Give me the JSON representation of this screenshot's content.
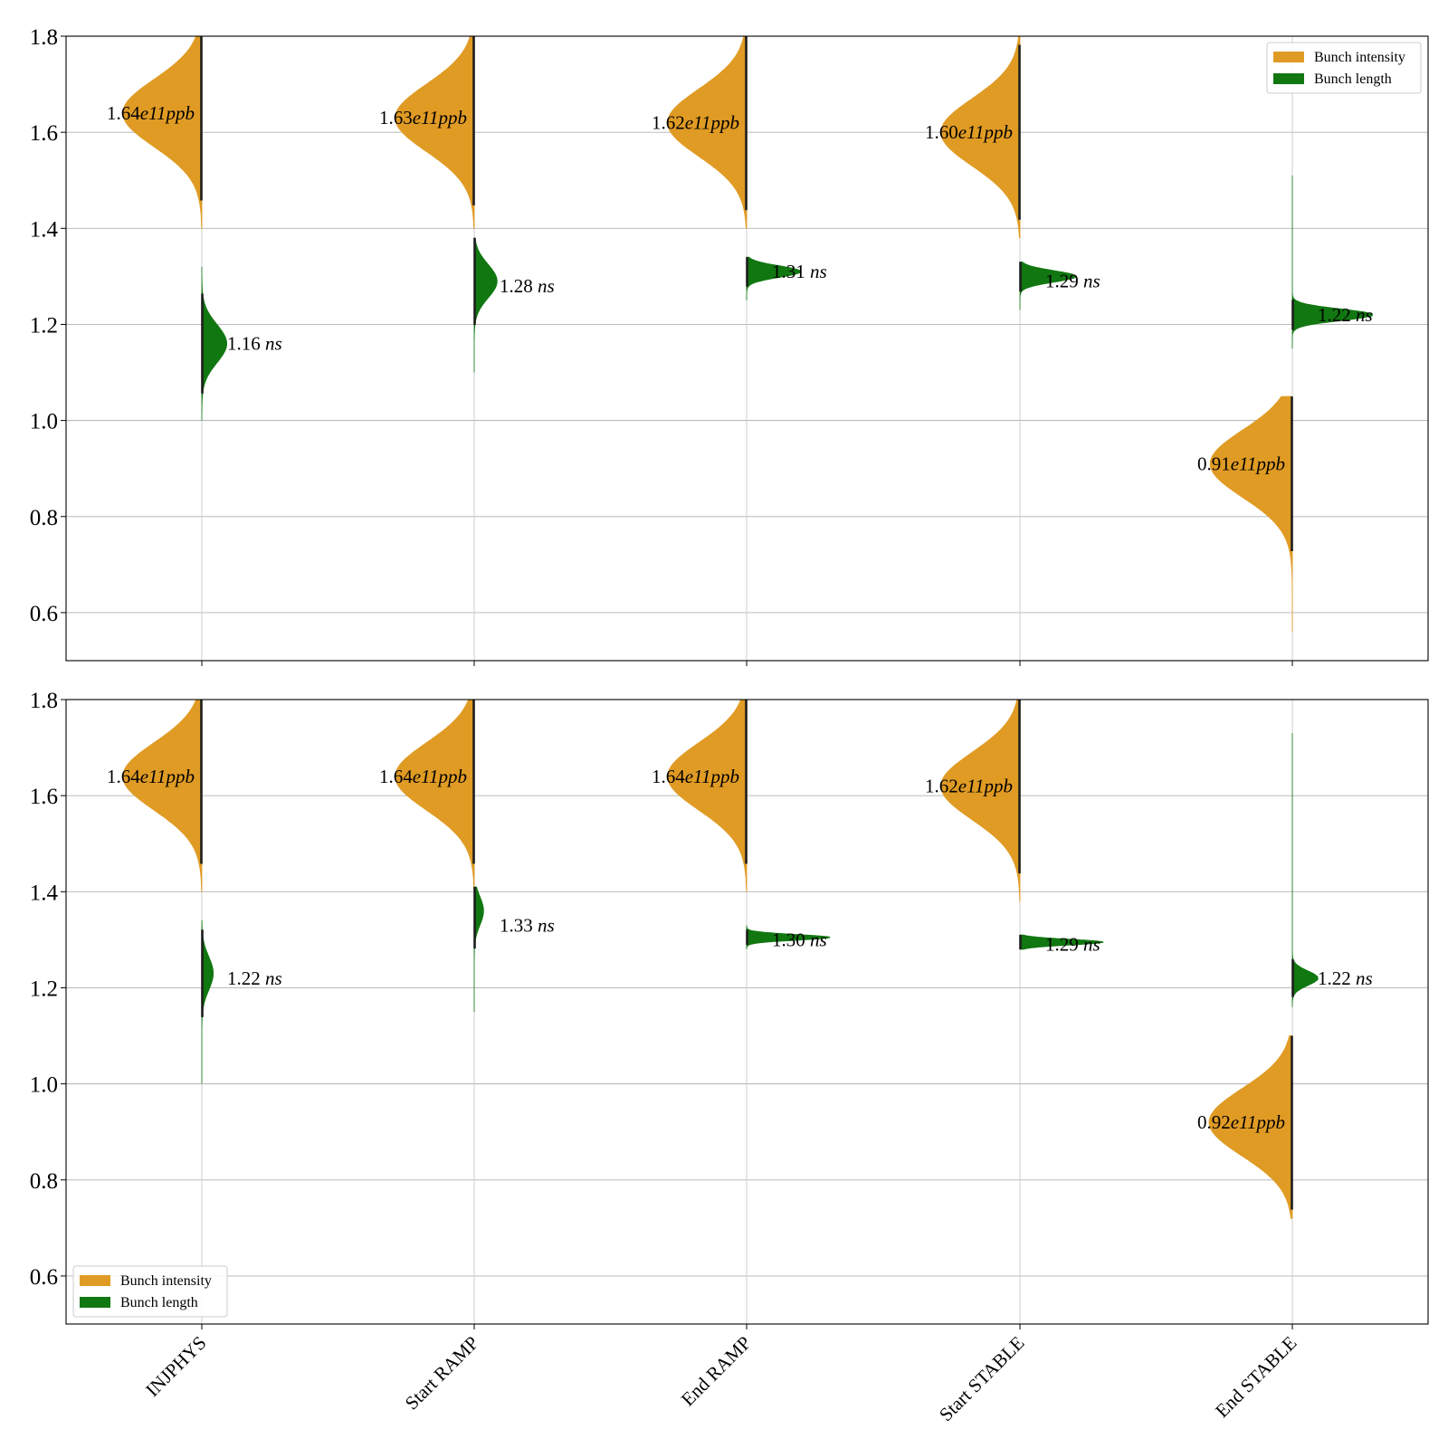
{
  "chart_data": [
    {
      "type": "violin",
      "panel": "top",
      "categories": [
        "INJPHYS",
        "Start RAMP",
        "End RAMP",
        "Start STABLE",
        "End STABLE"
      ],
      "show_category_labels": false,
      "ylim": [
        0.5,
        1.8
      ],
      "yticks": [
        "0.6",
        "0.8",
        "1.0",
        "1.2",
        "1.4",
        "1.6",
        "1.8"
      ],
      "grid": "horizontal",
      "legend": {
        "position": "top-right",
        "entries": [
          {
            "label": "Bunch intensity",
            "color": "#E09B24"
          },
          {
            "label": "Bunch length",
            "color": "#117711"
          }
        ]
      },
      "series": [
        {
          "name": "Bunch intensity",
          "color": "#E09B24",
          "side": "left",
          "distributions": [
            {
              "category": "INJPHYS",
              "mode": 1.64,
              "sd": 0.07,
              "min": 1.4,
              "max": 1.8,
              "peak_width": 0.76
            },
            {
              "category": "Start RAMP",
              "mode": 1.63,
              "sd": 0.07,
              "min": 1.4,
              "max": 1.8,
              "peak_width": 0.76
            },
            {
              "category": "End RAMP",
              "mode": 1.62,
              "sd": 0.07,
              "min": 1.4,
              "max": 1.8,
              "peak_width": 0.76
            },
            {
              "category": "Start STABLE",
              "mode": 1.6,
              "sd": 0.07,
              "min": 1.38,
              "max": 1.8,
              "peak_width": 0.76
            },
            {
              "category": "End STABLE",
              "mode": 0.91,
              "sd": 0.07,
              "min": 0.56,
              "max": 1.05,
              "peak_width": 0.79
            }
          ],
          "annotations": [
            {
              "category": "INJPHYS",
              "y": 1.64,
              "value": "1.64",
              "sci": "e11",
              "unit": "ppb"
            },
            {
              "category": "Start RAMP",
              "y": 1.63,
              "value": "1.63",
              "sci": "e11",
              "unit": "ppb"
            },
            {
              "category": "End RAMP",
              "y": 1.62,
              "value": "1.62",
              "sci": "e11",
              "unit": "ppb"
            },
            {
              "category": "Start STABLE",
              "y": 1.6,
              "value": "1.60",
              "sci": "e11",
              "unit": "ppb"
            },
            {
              "category": "End STABLE",
              "y": 0.91,
              "value": "0.91",
              "sci": "e11",
              "unit": "ppb"
            }
          ]
        },
        {
          "name": "Bunch length",
          "color": "#117711",
          "side": "right",
          "distributions": [
            {
              "category": "INJPHYS",
              "mode": 1.16,
              "sd": 0.04,
              "min": 1.0,
              "max": 1.32,
              "peak_width": 0.24
            },
            {
              "category": "Start RAMP",
              "mode": 1.29,
              "sd": 0.035,
              "min": 1.1,
              "max": 1.38,
              "peak_width": 0.22
            },
            {
              "category": "End RAMP",
              "mode": 1.31,
              "sd": 0.012,
              "min": 1.25,
              "max": 1.34,
              "peak_width": 0.52
            },
            {
              "category": "Start STABLE",
              "mode": 1.3,
              "sd": 0.012,
              "min": 1.23,
              "max": 1.33,
              "peak_width": 0.54
            },
            {
              "category": "End STABLE",
              "mode": 1.22,
              "sd": 0.012,
              "min": 1.15,
              "max": 1.51,
              "peak_width": 0.78
            }
          ],
          "annotations": [
            {
              "category": "INJPHYS",
              "y": 1.16,
              "value": "1.16",
              "unit": "ns"
            },
            {
              "category": "Start RAMP",
              "y": 1.28,
              "value": "1.28",
              "unit": "ns"
            },
            {
              "category": "End RAMP",
              "y": 1.31,
              "value": "1.31",
              "unit": "ns"
            },
            {
              "category": "Start STABLE",
              "y": 1.29,
              "value": "1.29",
              "unit": "ns"
            },
            {
              "category": "End STABLE",
              "y": 1.22,
              "value": "1.22",
              "unit": "ns"
            }
          ]
        }
      ]
    },
    {
      "type": "violin",
      "panel": "bottom",
      "categories": [
        "INJPHYS",
        "Start RAMP",
        "End RAMP",
        "Start STABLE",
        "End STABLE"
      ],
      "show_category_labels": true,
      "ylim": [
        0.5,
        1.8
      ],
      "yticks": [
        "0.6",
        "0.8",
        "1.0",
        "1.2",
        "1.4",
        "1.6",
        "1.8"
      ],
      "grid": "horizontal",
      "legend": {
        "position": "bottom-left",
        "entries": [
          {
            "label": "Bunch intensity",
            "color": "#E09B24"
          },
          {
            "label": "Bunch length",
            "color": "#117711"
          }
        ]
      },
      "series": [
        {
          "name": "Bunch intensity",
          "color": "#E09B24",
          "side": "left",
          "distributions": [
            {
              "category": "INJPHYS",
              "mode": 1.64,
              "sd": 0.07,
              "min": 1.4,
              "max": 1.8,
              "peak_width": 0.76
            },
            {
              "category": "Start RAMP",
              "mode": 1.64,
              "sd": 0.07,
              "min": 1.4,
              "max": 1.8,
              "peak_width": 0.76
            },
            {
              "category": "End RAMP",
              "mode": 1.64,
              "sd": 0.07,
              "min": 1.4,
              "max": 1.8,
              "peak_width": 0.76
            },
            {
              "category": "Start STABLE",
              "mode": 1.62,
              "sd": 0.07,
              "min": 1.38,
              "max": 1.8,
              "peak_width": 0.76
            },
            {
              "category": "End STABLE",
              "mode": 0.92,
              "sd": 0.07,
              "min": 0.72,
              "max": 1.1,
              "peak_width": 0.8
            }
          ],
          "annotations": [
            {
              "category": "INJPHYS",
              "y": 1.64,
              "value": "1.64",
              "sci": "e11",
              "unit": "ppb"
            },
            {
              "category": "Start RAMP",
              "y": 1.64,
              "value": "1.64",
              "sci": "e11",
              "unit": "ppb"
            },
            {
              "category": "End RAMP",
              "y": 1.64,
              "value": "1.64",
              "sci": "e11",
              "unit": "ppb"
            },
            {
              "category": "Start STABLE",
              "y": 1.62,
              "value": "1.62",
              "sci": "e11",
              "unit": "ppb"
            },
            {
              "category": "End STABLE",
              "y": 0.92,
              "value": "0.92",
              "sci": "e11",
              "unit": "ppb"
            }
          ]
        },
        {
          "name": "Bunch length",
          "color": "#117711",
          "side": "right",
          "distributions": [
            {
              "category": "INJPHYS",
              "mode": 1.23,
              "sd": 0.035,
              "min": 1.0,
              "max": 1.34,
              "peak_width": 0.11
            },
            {
              "category": "Start RAMP",
              "mode": 1.36,
              "sd": 0.03,
              "min": 1.15,
              "max": 1.41,
              "peak_width": 0.09
            },
            {
              "category": "End RAMP",
              "mode": 1.305,
              "sd": 0.006,
              "min": 1.28,
              "max": 1.33,
              "peak_width": 0.8
            },
            {
              "category": "Start STABLE",
              "mode": 1.295,
              "sd": 0.006,
              "min": 1.28,
              "max": 1.31,
              "peak_width": 0.8
            },
            {
              "category": "End STABLE",
              "mode": 1.22,
              "sd": 0.015,
              "min": 1.16,
              "max": 1.73,
              "peak_width": 0.25
            }
          ],
          "annotations": [
            {
              "category": "INJPHYS",
              "y": 1.22,
              "value": "1.22",
              "unit": "ns"
            },
            {
              "category": "Start RAMP",
              "y": 1.33,
              "value": "1.33",
              "unit": "ns"
            },
            {
              "category": "End RAMP",
              "y": 1.3,
              "value": "1.30",
              "unit": "ns"
            },
            {
              "category": "Start STABLE",
              "y": 1.29,
              "value": "1.29",
              "unit": "ns"
            },
            {
              "category": "End STABLE",
              "y": 1.22,
              "value": "1.22",
              "unit": "ns"
            }
          ]
        }
      ]
    }
  ]
}
